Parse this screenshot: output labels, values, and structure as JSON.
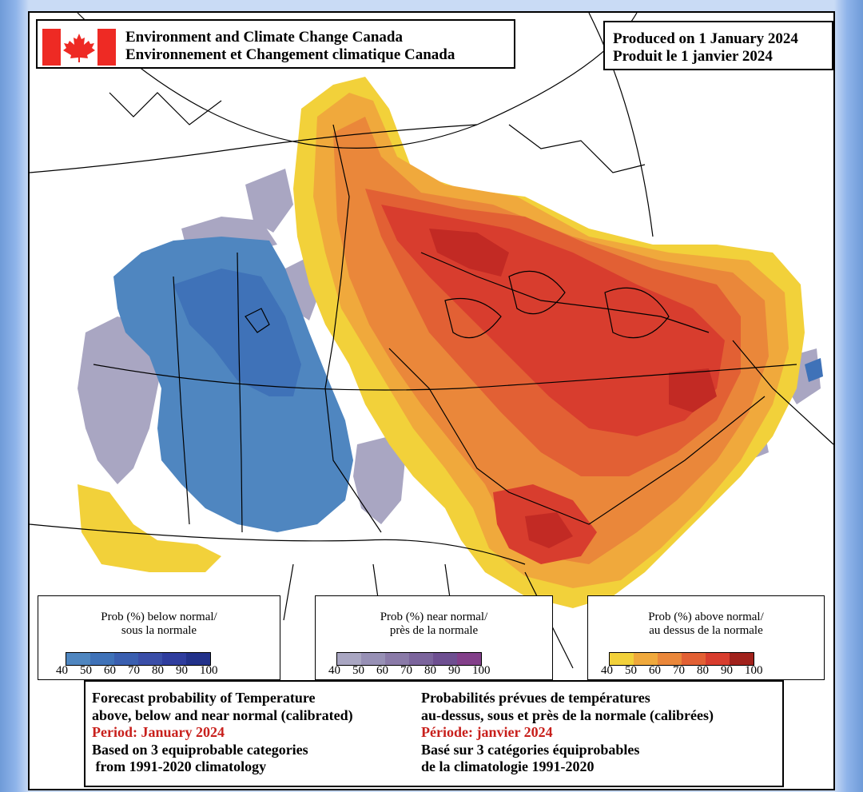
{
  "header": {
    "agency_en": "Environment and Climate Change Canada",
    "agency_fr": "Environnement et Changement climatique Canada",
    "produced_en": "Produced on 1 January 2024",
    "produced_fr": "Produit le 1 janvier 2024"
  },
  "colors": {
    "flag_red": "#ee2a24",
    "below": [
      "#4f86c0",
      "#3f72b8",
      "#3a5fb0",
      "#3a4ea8",
      "#2f3d9e",
      "#22318a",
      "#17257a"
    ],
    "near": [
      "#a9a6c2",
      "#9790b5",
      "#8a7aa8",
      "#7b649c",
      "#6e4f91",
      "#833f8a",
      "#9b2f7c"
    ],
    "above": [
      "#f2d13a",
      "#f0a93c",
      "#ea873a",
      "#e26034",
      "#d83d2e",
      "#c22a24",
      "#a1221c"
    ]
  },
  "legends": {
    "below": {
      "line1": "Prob (%) below normal/",
      "line2": "sous la normale",
      "ticks": [
        "40",
        "50",
        "60",
        "70",
        "80",
        "90",
        "100"
      ]
    },
    "near": {
      "line1": "Prob (%) near normal/",
      "line2": "près de la normale",
      "ticks": [
        "40",
        "50",
        "60",
        "70",
        "80",
        "90",
        "100"
      ]
    },
    "above": {
      "line1": "Prob (%) above normal/",
      "line2": "au dessus de la normale",
      "ticks": [
        "40",
        "50",
        "60",
        "70",
        "80",
        "90",
        "100"
      ]
    }
  },
  "info": {
    "en_line1": "Forecast probability of Temperature",
    "en_line2": "above, below and near normal (calibrated)",
    "en_period": "Period: January 2024",
    "en_line4": "Based on 3 equiprobable categories",
    "en_line5": " from 1991-2020 climatology",
    "fr_line1": "Probabilités prévues de températures",
    "fr_line2": "au-dessus, sous et près de la normale (calibrées)",
    "fr_period": "Période: janvier 2024",
    "fr_line4": "Basé sur 3 catégories équiprobables",
    "fr_line5": "de la climatologie 1991-2020"
  }
}
